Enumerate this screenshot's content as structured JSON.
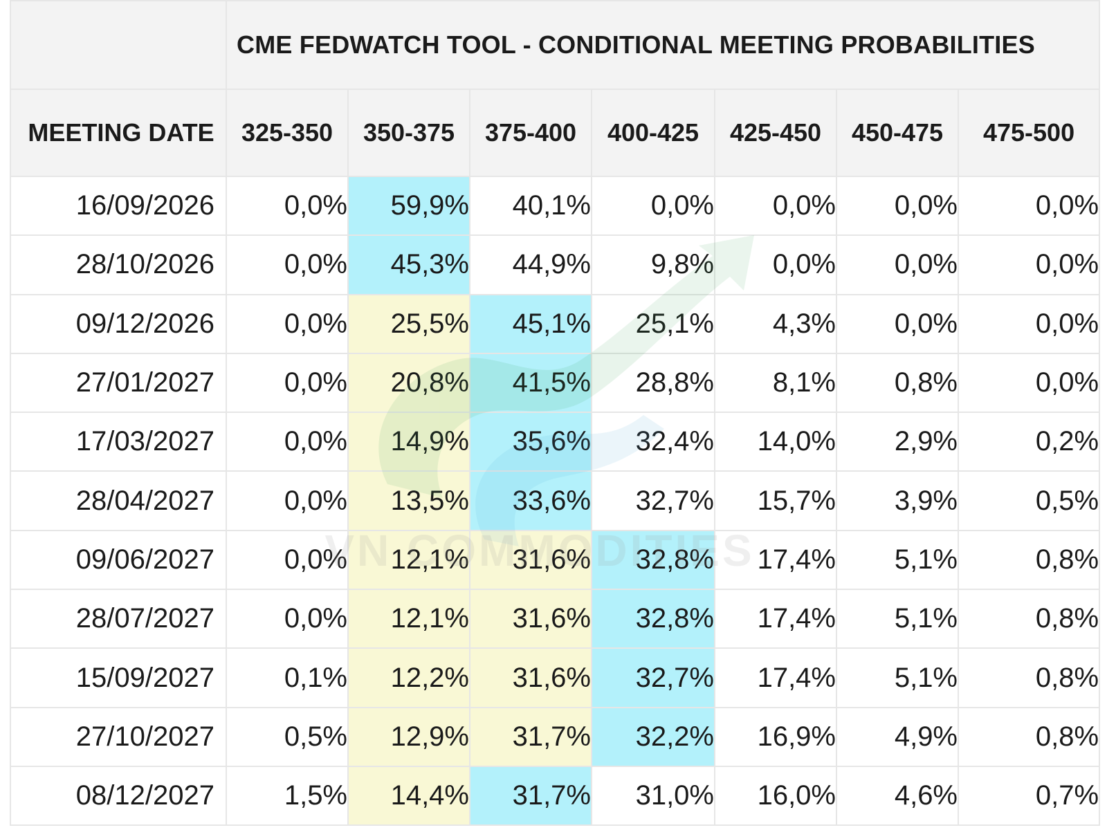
{
  "chart_data": {
    "type": "table",
    "title": "CME FEDWATCH TOOL - CONDITIONAL MEETING PROBABILITIES",
    "row_header": "MEETING DATE",
    "columns": [
      "325-350",
      "350-375",
      "375-400",
      "400-425",
      "425-450",
      "450-475",
      "475-500"
    ],
    "rows": [
      {
        "date": "16/09/2026",
        "values": [
          "0,0%",
          "59,9%",
          "40,1%",
          "0,0%",
          "0,0%",
          "0,0%",
          "0,0%"
        ],
        "highlight": {
          "blue": 1,
          "yellow": []
        }
      },
      {
        "date": "28/10/2026",
        "values": [
          "0,0%",
          "45,3%",
          "44,9%",
          "9,8%",
          "0,0%",
          "0,0%",
          "0,0%"
        ],
        "highlight": {
          "blue": 1,
          "yellow": []
        }
      },
      {
        "date": "09/12/2026",
        "values": [
          "0,0%",
          "25,5%",
          "45,1%",
          "25,1%",
          "4,3%",
          "0,0%",
          "0,0%"
        ],
        "highlight": {
          "blue": 2,
          "yellow": [
            1
          ]
        }
      },
      {
        "date": "27/01/2027",
        "values": [
          "0,0%",
          "20,8%",
          "41,5%",
          "28,8%",
          "8,1%",
          "0,8%",
          "0,0%"
        ],
        "highlight": {
          "blue": 2,
          "yellow": [
            1
          ]
        }
      },
      {
        "date": "17/03/2027",
        "values": [
          "0,0%",
          "14,9%",
          "35,6%",
          "32,4%",
          "14,0%",
          "2,9%",
          "0,2%"
        ],
        "highlight": {
          "blue": 2,
          "yellow": [
            1
          ]
        }
      },
      {
        "date": "28/04/2027",
        "values": [
          "0,0%",
          "13,5%",
          "33,6%",
          "32,7%",
          "15,7%",
          "3,9%",
          "0,5%"
        ],
        "highlight": {
          "blue": 2,
          "yellow": [
            1
          ]
        }
      },
      {
        "date": "09/06/2027",
        "values": [
          "0,0%",
          "12,1%",
          "31,6%",
          "32,8%",
          "17,4%",
          "5,1%",
          "0,8%"
        ],
        "highlight": {
          "blue": 3,
          "yellow": [
            1,
            2
          ]
        }
      },
      {
        "date": "28/07/2027",
        "values": [
          "0,0%",
          "12,1%",
          "31,6%",
          "32,8%",
          "17,4%",
          "5,1%",
          "0,8%"
        ],
        "highlight": {
          "blue": 3,
          "yellow": [
            1,
            2
          ]
        }
      },
      {
        "date": "15/09/2027",
        "values": [
          "0,1%",
          "12,2%",
          "31,6%",
          "32,7%",
          "17,4%",
          "5,1%",
          "0,8%"
        ],
        "highlight": {
          "blue": 3,
          "yellow": [
            1,
            2
          ]
        }
      },
      {
        "date": "27/10/2027",
        "values": [
          "0,5%",
          "12,9%",
          "31,7%",
          "32,2%",
          "16,9%",
          "4,9%",
          "0,8%"
        ],
        "highlight": {
          "blue": 3,
          "yellow": [
            1,
            2
          ]
        }
      },
      {
        "date": "08/12/2027",
        "values": [
          "1,5%",
          "14,4%",
          "31,7%",
          "31,0%",
          "16,0%",
          "4,6%",
          "0,7%"
        ],
        "highlight": {
          "blue": 2,
          "yellow": [
            1
          ]
        }
      }
    ],
    "colors": {
      "highlight_max": "#b3f1fb",
      "highlight_secondary": "#f9f8d5",
      "header_bg": "#f3f3f3",
      "grid": "#e6e6e6"
    }
  },
  "watermark": {
    "text": "VN COMMODITIES",
    "icon": "upward-arrow-logo"
  }
}
